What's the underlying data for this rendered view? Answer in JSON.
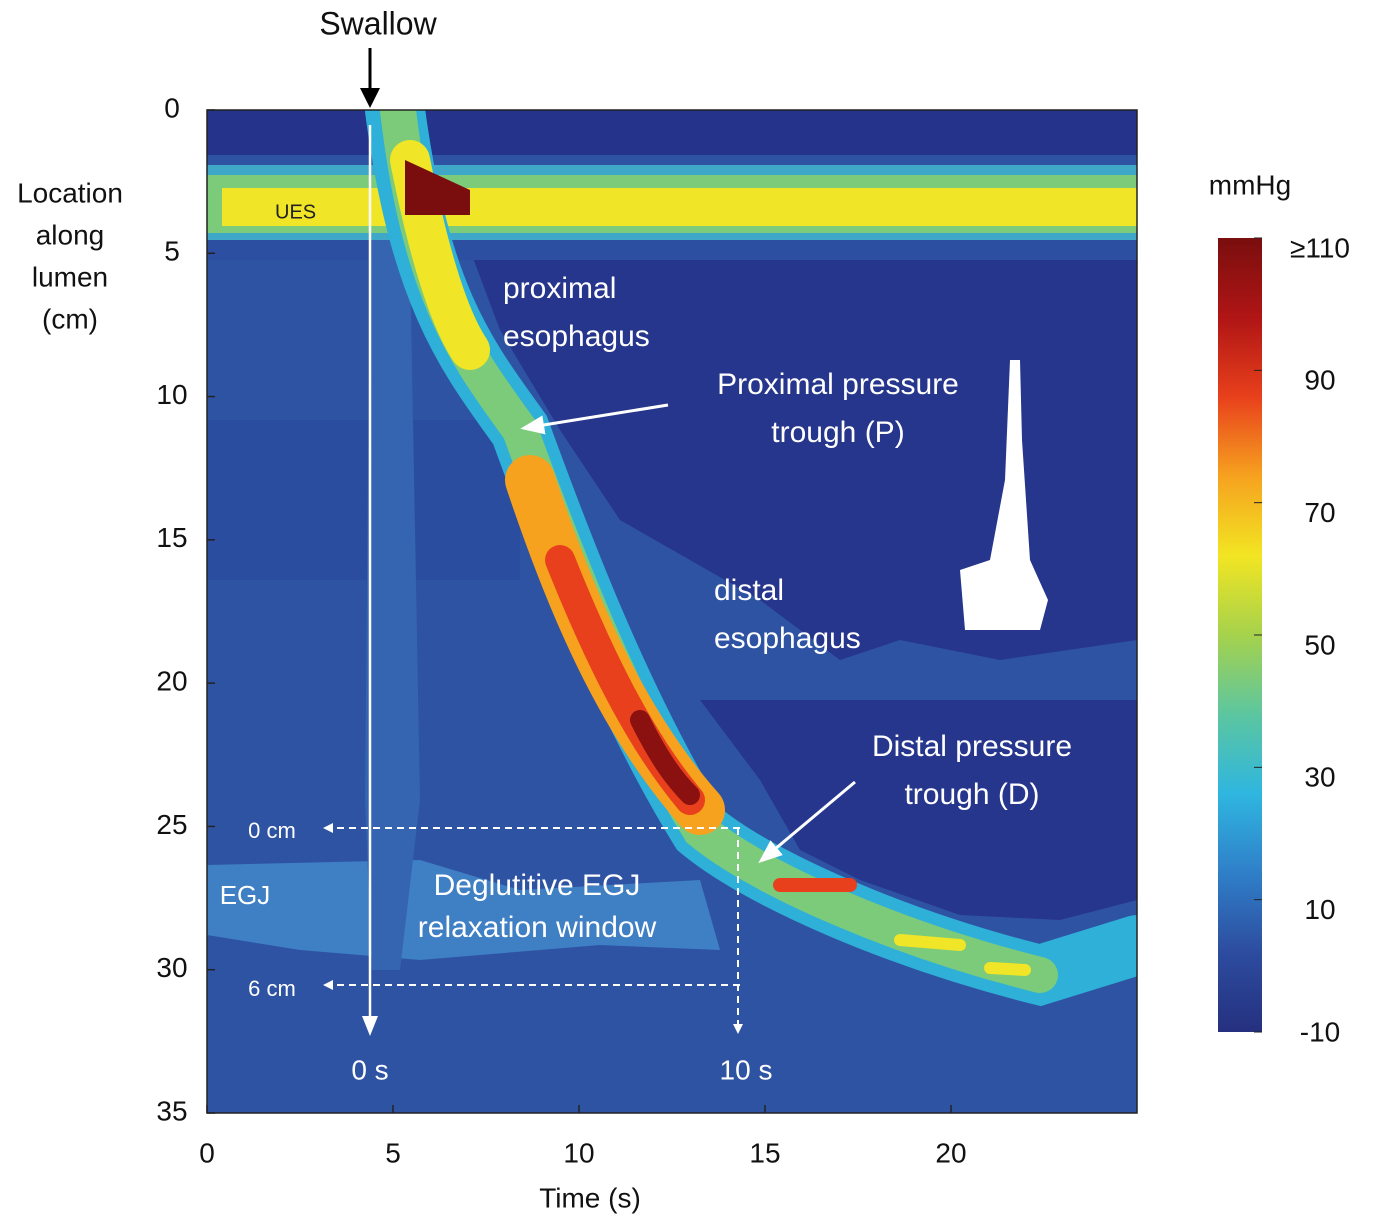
{
  "chart_data": {
    "type": "contour",
    "xlabel": "Time (s)",
    "ylabel": [
      "Location",
      "along",
      "lumen",
      "(cm)"
    ],
    "xlim": [
      0,
      25
    ],
    "xticks": [
      0,
      5,
      10,
      15,
      20
    ],
    "ylim": [
      0,
      35
    ],
    "yticks": [
      0,
      5,
      10,
      15,
      20,
      25,
      30,
      35
    ],
    "y_inverted": true,
    "colorbar": {
      "label": "mmHg",
      "lim": [
        -10,
        110
      ],
      "ticks": [
        -10,
        10,
        30,
        50,
        70,
        90,
        {
          "value": 110,
          "label": "≥110"
        }
      ],
      "colors": [
        "#25307f",
        "#2d4c9f",
        "#2f7fc8",
        "#2fb6e0",
        "#5cc6a0",
        "#a6d24c",
        "#f2e522",
        "#f6a21f",
        "#e8401c",
        "#b01515",
        "#7a0e0e"
      ]
    },
    "annotations": {
      "swallow": "Swallow",
      "ues": "UES",
      "proximal_esophagus": [
        "proximal",
        "esophagus"
      ],
      "proximal_trough": [
        "Proximal pressure",
        "trough (P)"
      ],
      "distal_esophagus": [
        "distal",
        "esophagus"
      ],
      "distal_trough": [
        "Distal pressure",
        "trough (D)"
      ],
      "zero_cm": "0 cm",
      "six_cm": "6 cm",
      "egj": "EGJ",
      "relaxation_window": [
        "Deglutitive EGJ",
        "relaxation window"
      ],
      "zero_s": "0 s",
      "ten_s": "10 s"
    }
  }
}
